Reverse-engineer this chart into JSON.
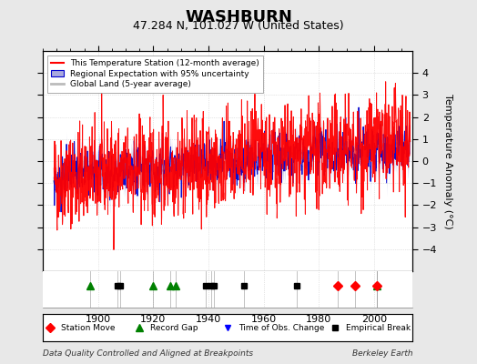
{
  "title": "WASHBURN",
  "subtitle": "47.284 N, 101.027 W (United States)",
  "ylabel": "Temperature Anomaly (°C)",
  "xlabel_left": "Data Quality Controlled and Aligned at Breakpoints",
  "xlabel_right": "Berkeley Earth",
  "ylim": [
    -5,
    5
  ],
  "yticks": [
    -4,
    -3,
    -2,
    -1,
    0,
    1,
    2,
    3,
    4
  ],
  "xlim": [
    1880,
    2014
  ],
  "bg_color": "#e8e8e8",
  "plot_bg_color": "#ffffff",
  "grid_color": "#cccccc",
  "red_color": "#ff0000",
  "blue_color": "#0000cc",
  "blue_shade_color": "#aaaadd",
  "gray_color": "#bbbbbb",
  "title_fontsize": 13,
  "subtitle_fontsize": 9,
  "label_fontsize": 8,
  "tick_fontsize": 8,
  "seed": 42,
  "station_moves": [
    1987,
    1993,
    2001
  ],
  "record_gaps": [
    1897,
    1920,
    1926,
    1928,
    2001
  ],
  "tobs_changes": [],
  "empirical_breaks": [
    1907,
    1908,
    1939,
    1941,
    1942,
    1953,
    1972
  ],
  "n_points": 1560
}
